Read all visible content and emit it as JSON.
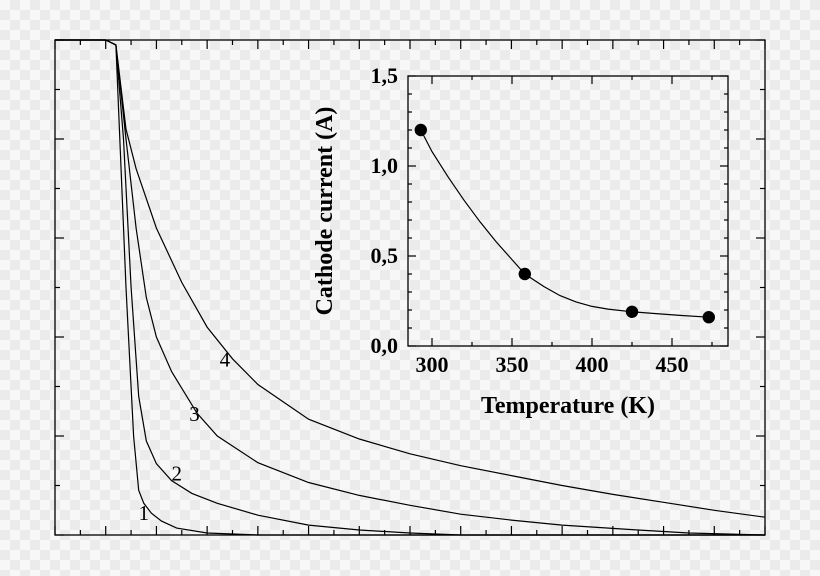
{
  "chart_data": [
    {
      "id": "main",
      "type": "line",
      "title": "",
      "xlabel": "",
      "ylabel": "",
      "tick_labels_shown": false,
      "grid": false,
      "xlim": [
        0,
        14
      ],
      "ylim": [
        0,
        5
      ],
      "series": [
        {
          "name": "1",
          "label_at": [
            1.75,
            0.15
          ],
          "x": [
            0,
            1.0,
            1.2,
            1.4,
            1.55,
            1.65,
            1.75,
            1.9,
            2.1,
            2.4,
            3.0,
            4.0,
            5.0,
            7.0,
            10.0,
            14.0
          ],
          "y": [
            5.0,
            5.0,
            4.95,
            2.5,
            1.0,
            0.45,
            0.32,
            0.22,
            0.14,
            0.07,
            0.02,
            0.0,
            0.0,
            0.0,
            0.0,
            0.0
          ]
        },
        {
          "name": "2",
          "label_at": [
            2.4,
            0.55
          ],
          "x": [
            0,
            1.0,
            1.2,
            1.35,
            1.5,
            1.65,
            1.8,
            2.0,
            2.3,
            2.7,
            3.2,
            4.0,
            5.0,
            6.0,
            7.0,
            8.0,
            10.0,
            14.0
          ],
          "y": [
            5.0,
            5.0,
            4.95,
            4.0,
            2.5,
            1.4,
            0.95,
            0.72,
            0.55,
            0.42,
            0.32,
            0.2,
            0.1,
            0.05,
            0.02,
            0.0,
            0.0,
            0.0
          ]
        },
        {
          "name": "3",
          "label_at": [
            2.75,
            1.15
          ],
          "x": [
            0,
            1.0,
            1.2,
            1.4,
            1.6,
            1.8,
            2.0,
            2.3,
            2.8,
            3.2,
            4.0,
            5.0,
            6.0,
            7.0,
            8.0,
            9.0,
            10.0,
            11.5,
            12.5,
            14.0
          ],
          "y": [
            5.0,
            5.0,
            4.95,
            4.0,
            3.1,
            2.4,
            2.0,
            1.65,
            1.23,
            1.0,
            0.73,
            0.53,
            0.4,
            0.3,
            0.21,
            0.15,
            0.1,
            0.05,
            0.02,
            0.0
          ]
        },
        {
          "name": "4",
          "label_at": [
            3.35,
            1.7
          ],
          "x": [
            0,
            1.0,
            1.2,
            1.4,
            1.6,
            2.0,
            2.5,
            3.0,
            3.5,
            4.0,
            5.0,
            6.0,
            7.0,
            8.0,
            9.0,
            10.0,
            11.0,
            12.0,
            13.0,
            14.0
          ],
          "y": [
            5.0,
            5.0,
            4.95,
            4.1,
            3.7,
            3.1,
            2.55,
            2.1,
            1.78,
            1.52,
            1.17,
            0.97,
            0.82,
            0.7,
            0.6,
            0.5,
            0.41,
            0.33,
            0.25,
            0.18
          ]
        }
      ]
    },
    {
      "id": "inset",
      "type": "scatter",
      "xlabel": "Temperature (K)",
      "ylabel": "Cathode current (A)",
      "xlim": [
        285,
        485
      ],
      "ylim": [
        0,
        1.5
      ],
      "x_ticks": [
        300,
        350,
        400,
        450
      ],
      "y_ticks": [
        0,
        0.5,
        1.0,
        1.5
      ],
      "y_tick_labels": [
        "0,0",
        "0,5",
        "1,0",
        "1,5"
      ],
      "points": {
        "x": [
          293,
          358,
          425,
          473
        ],
        "y": [
          1.2,
          0.4,
          0.19,
          0.16
        ]
      },
      "fit_curve": {
        "x": [
          293,
          300,
          310,
          320,
          330,
          340,
          350,
          358,
          370,
          380,
          390,
          400,
          410,
          425,
          440,
          455,
          473
        ],
        "y": [
          1.2,
          1.08,
          0.94,
          0.81,
          0.69,
          0.58,
          0.48,
          0.4,
          0.33,
          0.28,
          0.245,
          0.22,
          0.205,
          0.19,
          0.18,
          0.17,
          0.16
        ]
      }
    }
  ]
}
